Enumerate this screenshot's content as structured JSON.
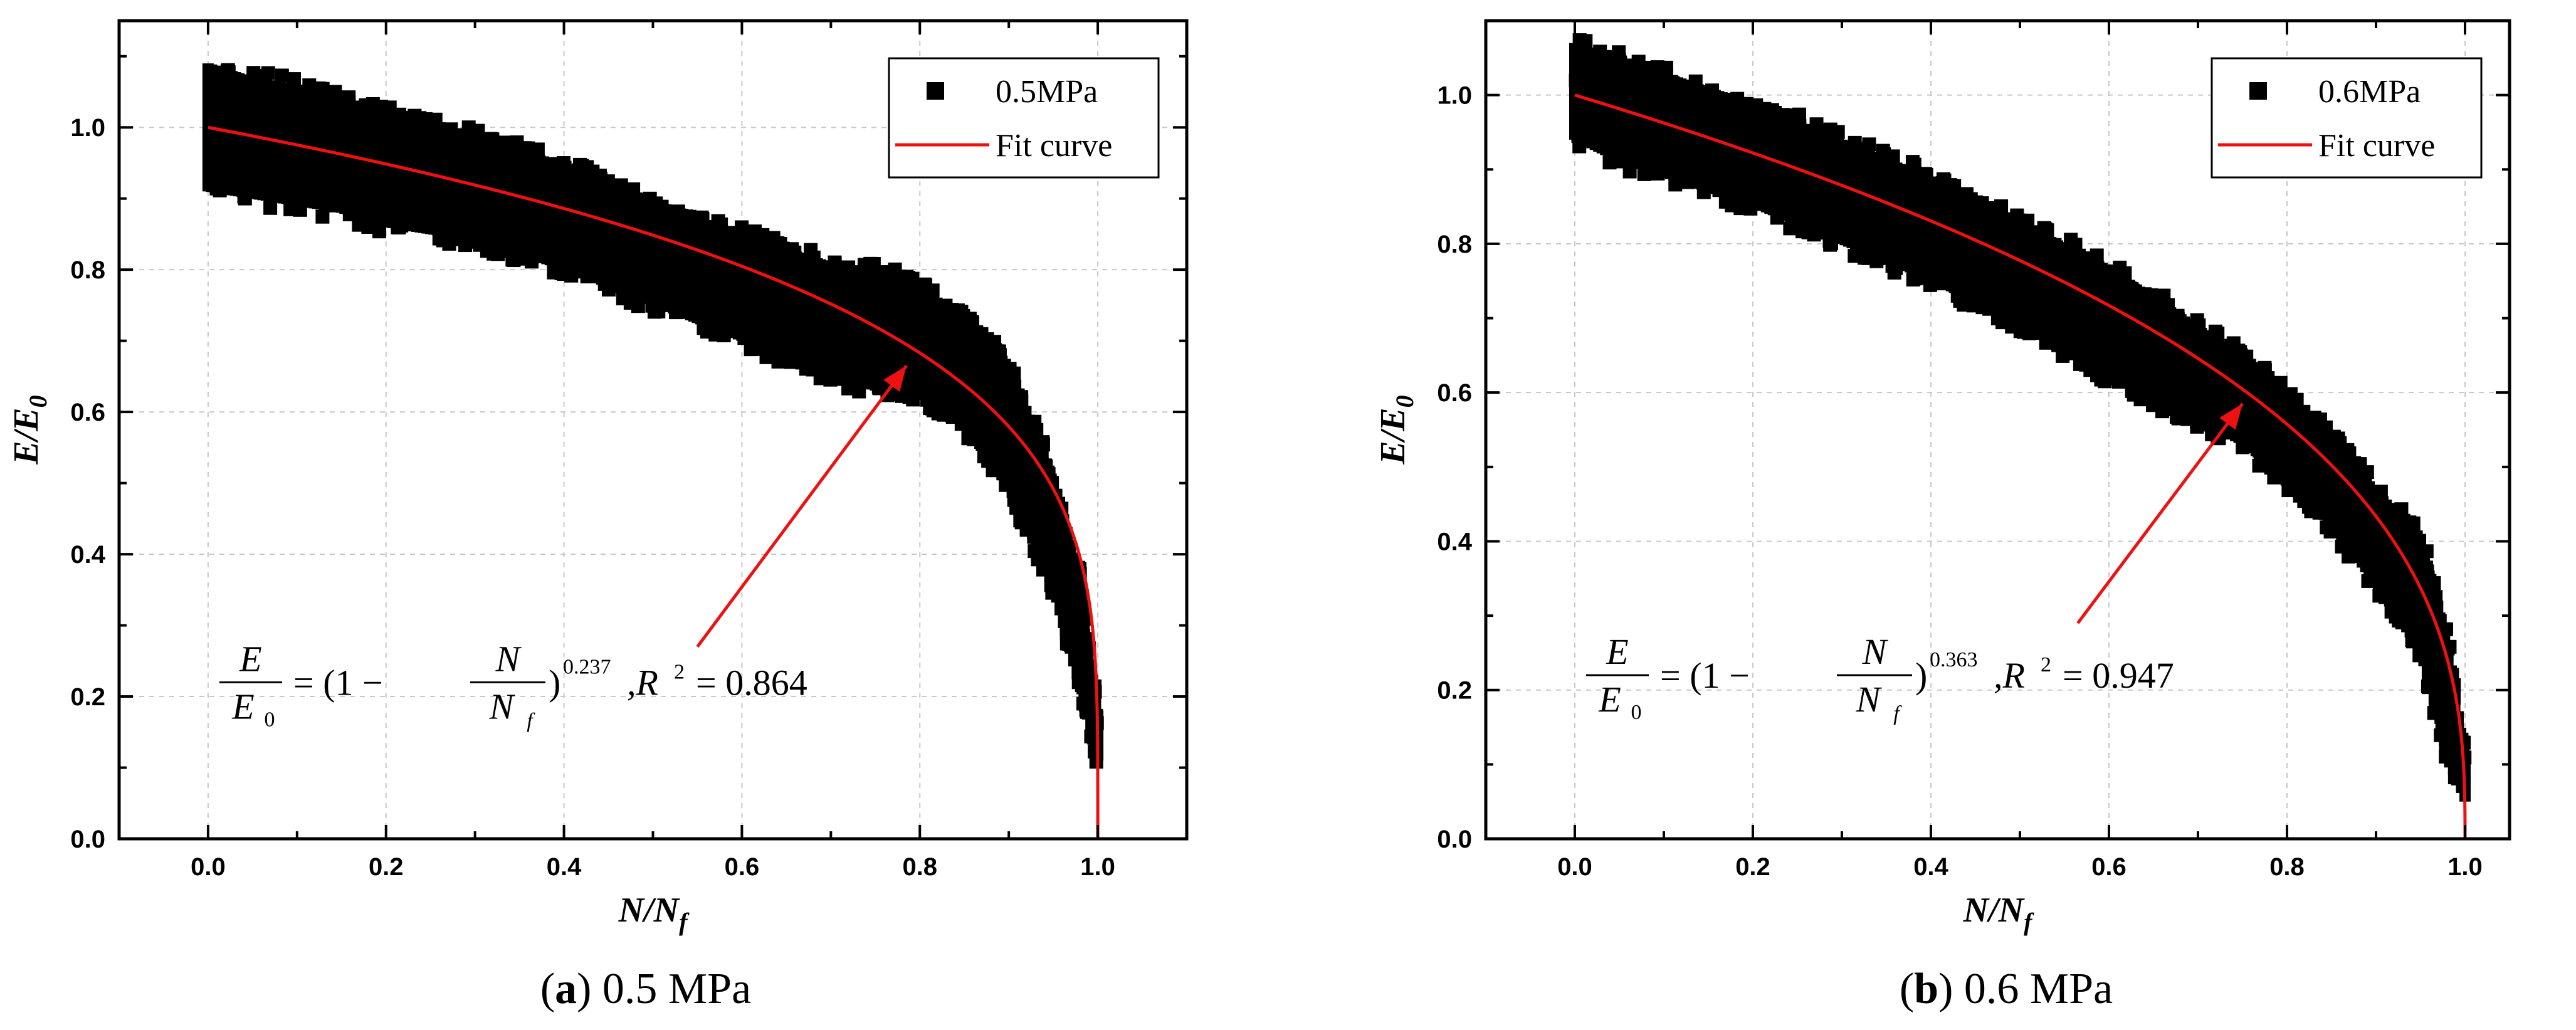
{
  "chart_data": [
    {
      "type": "scatter",
      "id": "a",
      "xlabel_main": "N/N",
      "xlabel_sub": "f",
      "ylabel_main": "E/E",
      "ylabel_sub": "0",
      "xlim": [
        -0.1,
        1.1
      ],
      "ylim": [
        0.0,
        1.15
      ],
      "xticks": [
        0.0,
        0.2,
        0.4,
        0.6,
        0.8,
        1.0
      ],
      "xtick_labels": [
        "0.0",
        "0.2",
        "0.4",
        "0.6",
        "0.8",
        "1.0"
      ],
      "yticks": [
        0.0,
        0.2,
        0.4,
        0.6,
        0.8,
        1.0
      ],
      "ytick_labels": [
        "0.0",
        "0.2",
        "0.4",
        "0.6",
        "0.8",
        "1.0"
      ],
      "grid": true,
      "legend_position": "top-right",
      "legend": [
        "0.5MPa",
        "Fit curve"
      ],
      "series": [
        {
          "name": "0.5MPa",
          "kind": "scatter-band",
          "color": "#000000",
          "x": [
            0.0,
            0.05,
            0.1,
            0.15,
            0.2,
            0.3,
            0.4,
            0.5,
            0.6,
            0.7,
            0.75,
            0.8,
            0.85,
            0.9,
            0.95,
            0.98,
            1.0
          ],
          "upper": [
            1.1,
            1.08,
            1.07,
            1.05,
            1.03,
            1.0,
            0.96,
            0.9,
            0.86,
            0.82,
            0.81,
            0.79,
            0.74,
            0.68,
            0.52,
            0.38,
            0.19
          ],
          "lower": [
            0.9,
            0.89,
            0.88,
            0.87,
            0.85,
            0.83,
            0.79,
            0.74,
            0.69,
            0.64,
            0.62,
            0.61,
            0.57,
            0.48,
            0.34,
            0.2,
            0.1
          ]
        },
        {
          "name": "Fit curve",
          "kind": "line",
          "color": "#ee1111",
          "exponent": 0.237
        }
      ],
      "equation": {
        "lhs_num": "E",
        "lhs_den": "E",
        "lhs_den_sub": "0",
        "mid": "= (1 −",
        "frac_num": "N",
        "frac_den": "N",
        "frac_den_sub": "f",
        "close": ")",
        "exponent": "0.237",
        "r2_prefix": ",R",
        "r2_sup": "2",
        "r2_value": "= 0.864"
      },
      "arrow": {
        "from": [
          0.55,
          0.27
        ],
        "to": [
          0.785,
          0.665
        ],
        "color": "#ee1111"
      },
      "caption_letter": "a",
      "caption_text": "0.5 MPa"
    },
    {
      "type": "scatter",
      "id": "b",
      "xlabel_main": "N/N",
      "xlabel_sub": "f",
      "ylabel_main": "E/E",
      "ylabel_sub": "0",
      "xlim": [
        -0.1,
        1.05
      ],
      "ylim": [
        0.0,
        1.1
      ],
      "xticks": [
        0.0,
        0.2,
        0.4,
        0.6,
        0.8,
        1.0
      ],
      "xtick_labels": [
        "0.0",
        "0.2",
        "0.4",
        "0.6",
        "0.8",
        "1.0"
      ],
      "yticks": [
        0.0,
        0.2,
        0.4,
        0.6,
        0.8,
        1.0
      ],
      "ytick_labels": [
        "0.0",
        "0.2",
        "0.4",
        "0.6",
        "0.8",
        "1.0"
      ],
      "grid": true,
      "legend_position": "top-right",
      "legend": [
        "0.6MPa",
        "Fit curve"
      ],
      "series": [
        {
          "name": "0.6MPa",
          "kind": "scatter-band",
          "color": "#000000",
          "x": [
            0.0,
            0.05,
            0.1,
            0.2,
            0.3,
            0.4,
            0.5,
            0.6,
            0.7,
            0.75,
            0.8,
            0.85,
            0.9,
            0.95,
            0.98,
            1.0
          ],
          "upper": [
            1.08,
            1.06,
            1.04,
            1.0,
            0.95,
            0.9,
            0.84,
            0.78,
            0.7,
            0.66,
            0.61,
            0.55,
            0.48,
            0.42,
            0.28,
            0.12
          ],
          "lower": [
            0.93,
            0.9,
            0.88,
            0.84,
            0.79,
            0.74,
            0.68,
            0.61,
            0.55,
            0.52,
            0.47,
            0.41,
            0.33,
            0.24,
            0.1,
            0.04
          ]
        },
        {
          "name": "Fit curve",
          "kind": "line",
          "color": "#ee1111",
          "exponent": 0.363
        }
      ],
      "equation": {
        "lhs_num": "E",
        "lhs_den": "E",
        "lhs_den_sub": "0",
        "mid": "= (1 −",
        "frac_num": "N",
        "frac_den": "N",
        "frac_den_sub": "f",
        "close": ")",
        "exponent": "0.363",
        "r2_prefix": ",R",
        "r2_sup": "2",
        "r2_value": "= 0.947"
      },
      "arrow": {
        "from": [
          0.565,
          0.29
        ],
        "to": [
          0.75,
          0.585
        ],
        "color": "#ee1111"
      },
      "caption_letter": "b",
      "caption_text": "0.6 MPa"
    }
  ]
}
